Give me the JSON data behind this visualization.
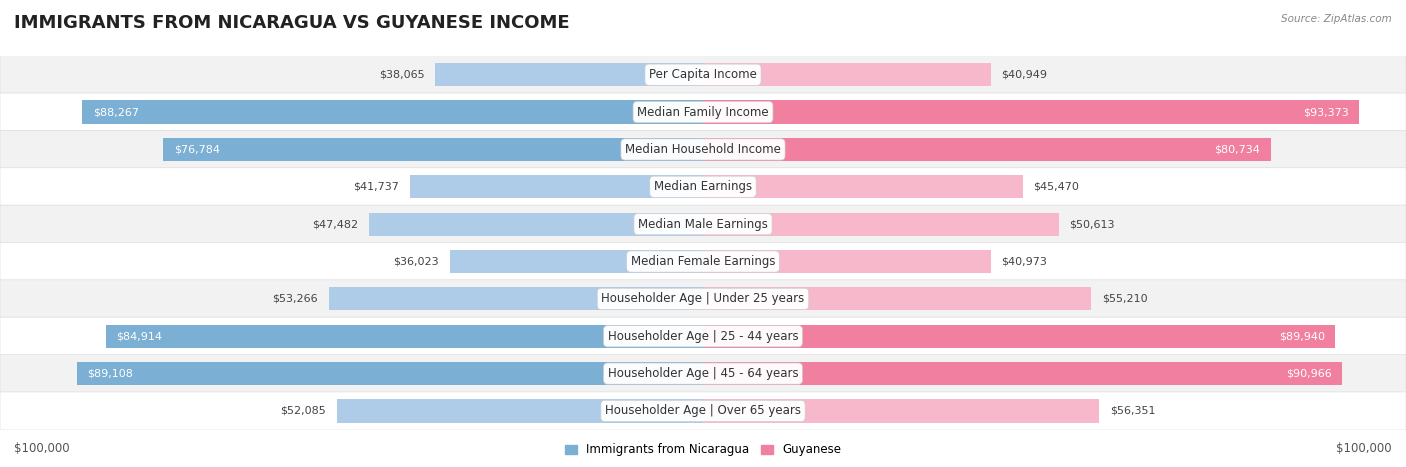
{
  "title": "IMMIGRANTS FROM NICARAGUA VS GUYANESE INCOME",
  "source": "Source: ZipAtlas.com",
  "categories": [
    "Per Capita Income",
    "Median Family Income",
    "Median Household Income",
    "Median Earnings",
    "Median Male Earnings",
    "Median Female Earnings",
    "Householder Age | Under 25 years",
    "Householder Age | 25 - 44 years",
    "Householder Age | 45 - 64 years",
    "Householder Age | Over 65 years"
  ],
  "nicaragua_values": [
    38065,
    88267,
    76784,
    41737,
    47482,
    36023,
    53266,
    84914,
    89108,
    52085
  ],
  "guyanese_values": [
    40949,
    93373,
    80734,
    45470,
    50613,
    40973,
    55210,
    89940,
    90966,
    56351
  ],
  "nicaragua_color": "#7bafd4",
  "guyanese_color": "#f17fa0",
  "nicaragua_color_light": "#aecce8",
  "guyanese_color_light": "#f7b8cb",
  "nicaragua_label": "Immigrants from Nicaragua",
  "guyanese_label": "Guyanese",
  "background_color": "#ffffff",
  "row_bg_light": "#f2f2f2",
  "row_bg_white": "#ffffff",
  "max_value": 100000,
  "xlabel_left": "$100,000",
  "xlabel_right": "$100,000",
  "title_fontsize": 13,
  "label_fontsize": 8.5,
  "value_fontsize": 8,
  "legend_fontsize": 8.5,
  "nic_threshold": 60000,
  "guy_threshold": 60000
}
